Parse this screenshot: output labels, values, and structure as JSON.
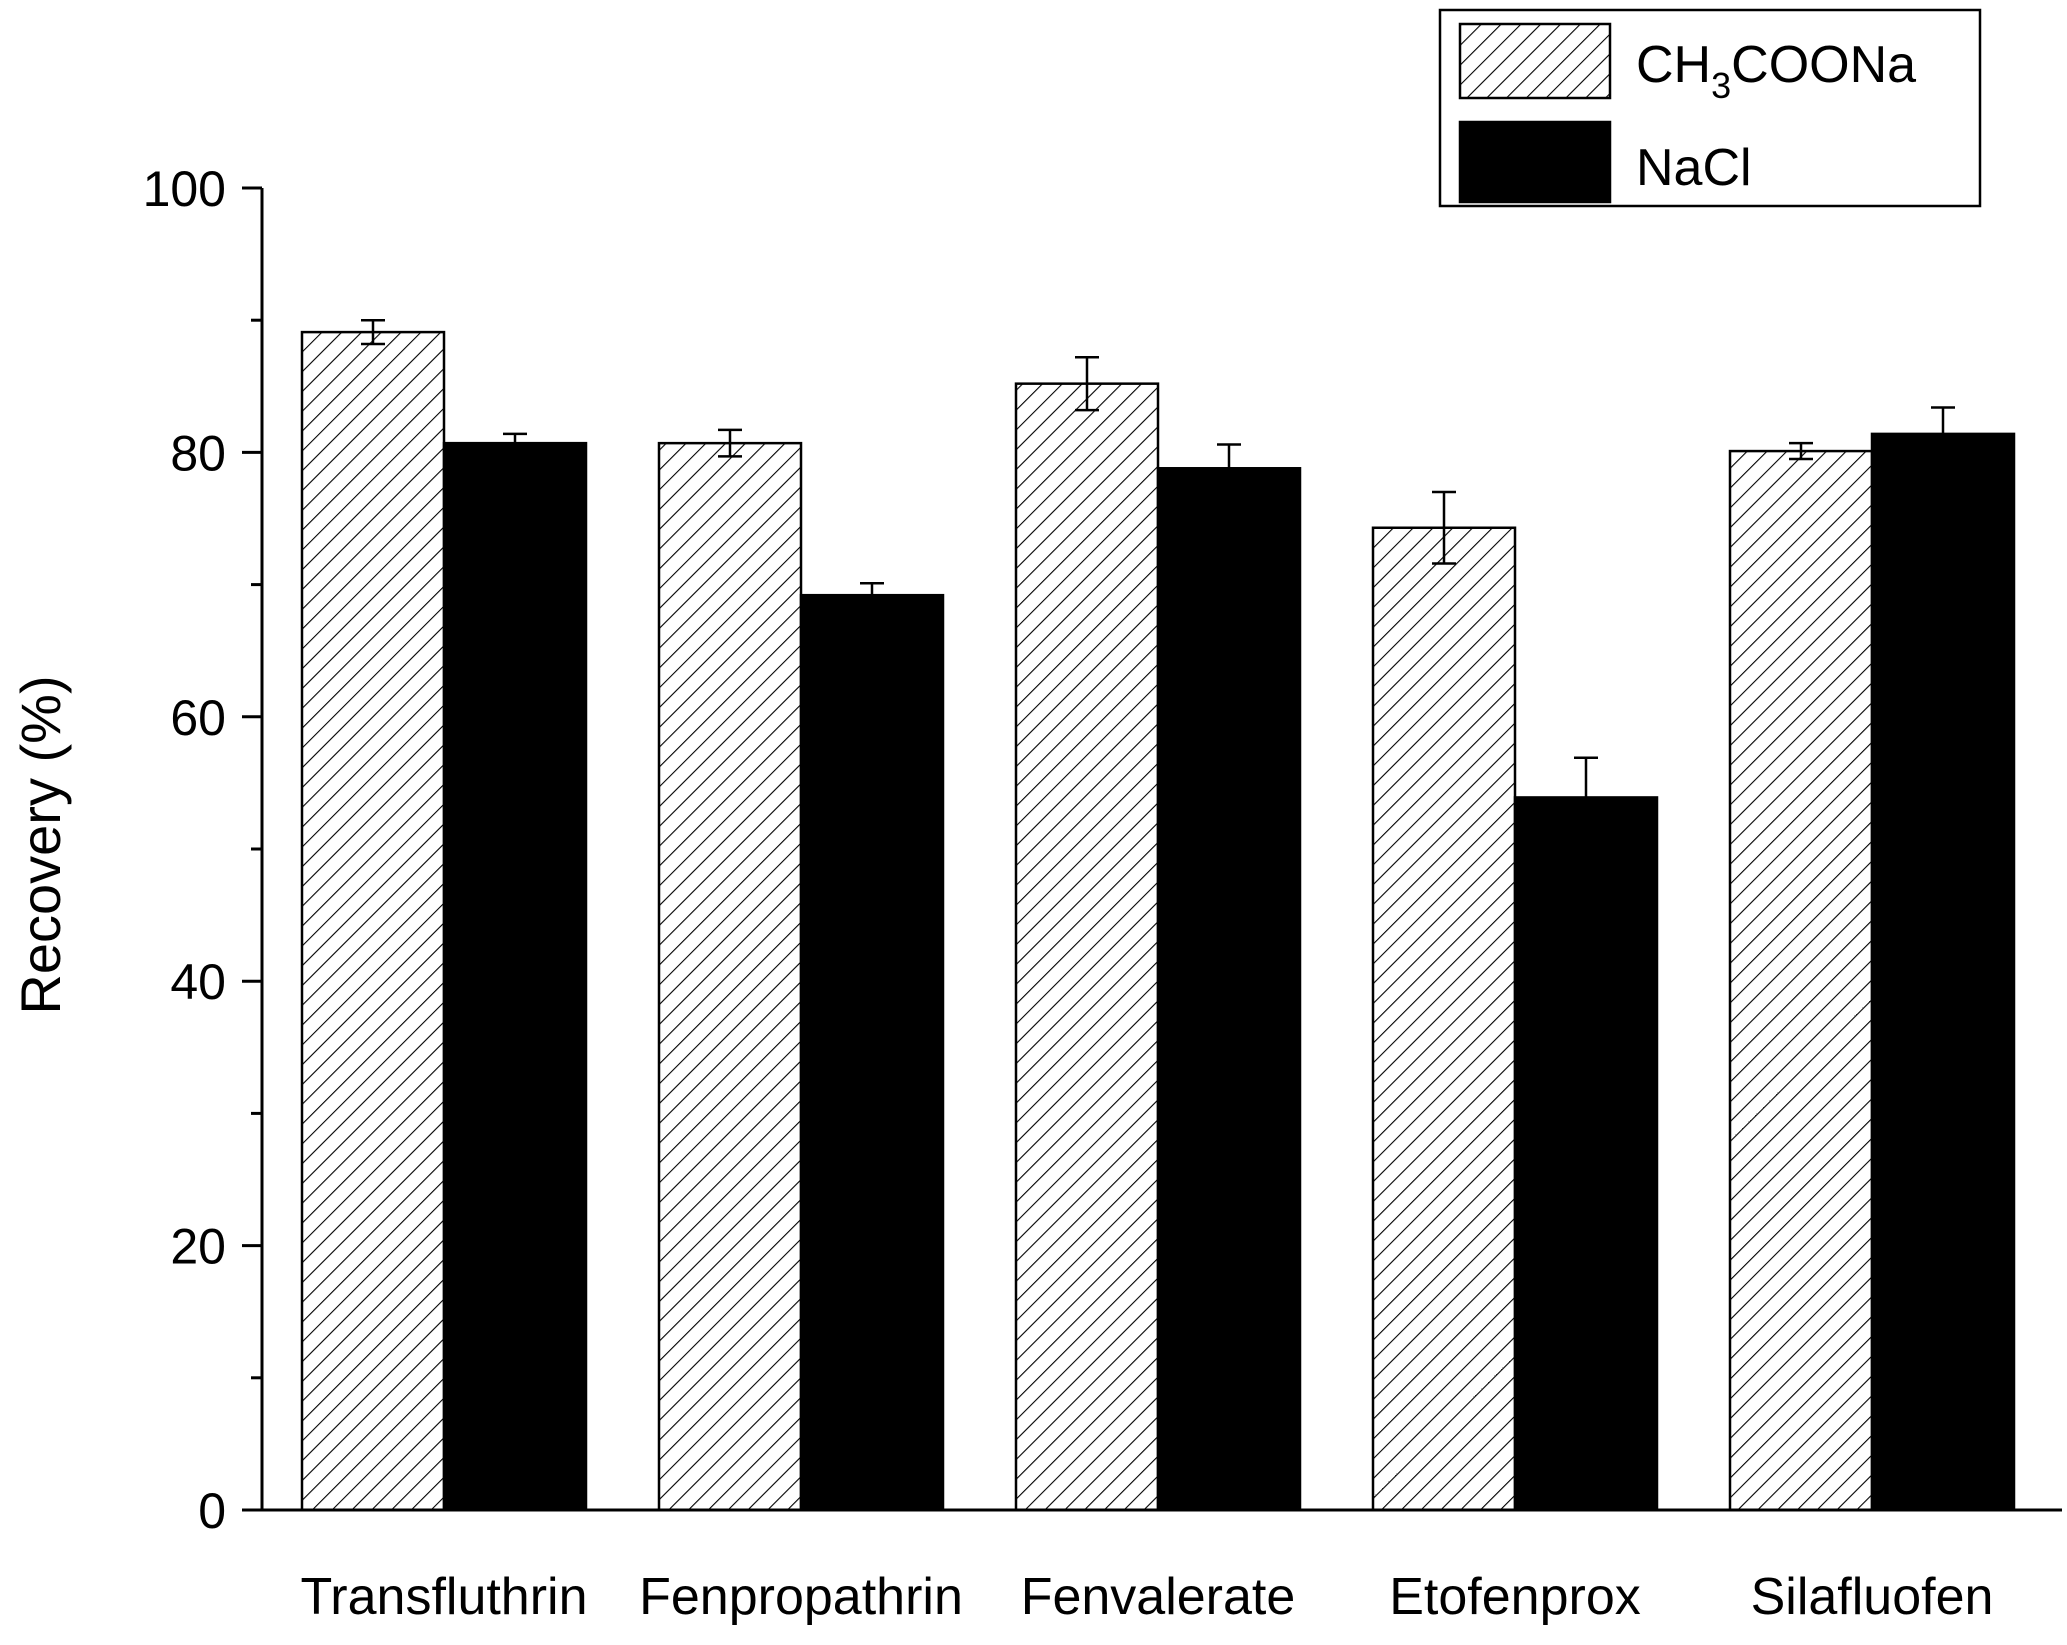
{
  "chart_data": {
    "type": "bar",
    "title": "",
    "xlabel": "",
    "ylabel": "Recovery (%)",
    "ylim": [
      0,
      100
    ],
    "yticks": [
      0,
      20,
      40,
      60,
      80,
      100
    ],
    "categories": [
      "Transfluthrin",
      "Fenpropathrin",
      "Fenvalerate",
      "Etofenprox",
      "Silafluofen"
    ],
    "series": [
      {
        "name": "CH3COONa",
        "legend_main": "CH",
        "legend_sub": "3",
        "legend_tail": "COONa",
        "pattern": "hatched",
        "values": [
          89.1,
          80.7,
          85.2,
          74.3,
          80.1
        ],
        "errors": [
          0.9,
          1.0,
          2.0,
          2.7,
          0.6
        ]
      },
      {
        "name": "NaCl",
        "legend_main": "NaCl",
        "pattern": "solid",
        "values": [
          80.7,
          69.2,
          78.8,
          53.9,
          81.4
        ],
        "errors": [
          0.7,
          0.9,
          1.8,
          3.0,
          2.0
        ]
      }
    ],
    "legend_position": "top-right",
    "grid": false,
    "colors": {
      "solid": "#000000",
      "hatch": "#000000",
      "background": "#ffffff"
    }
  }
}
